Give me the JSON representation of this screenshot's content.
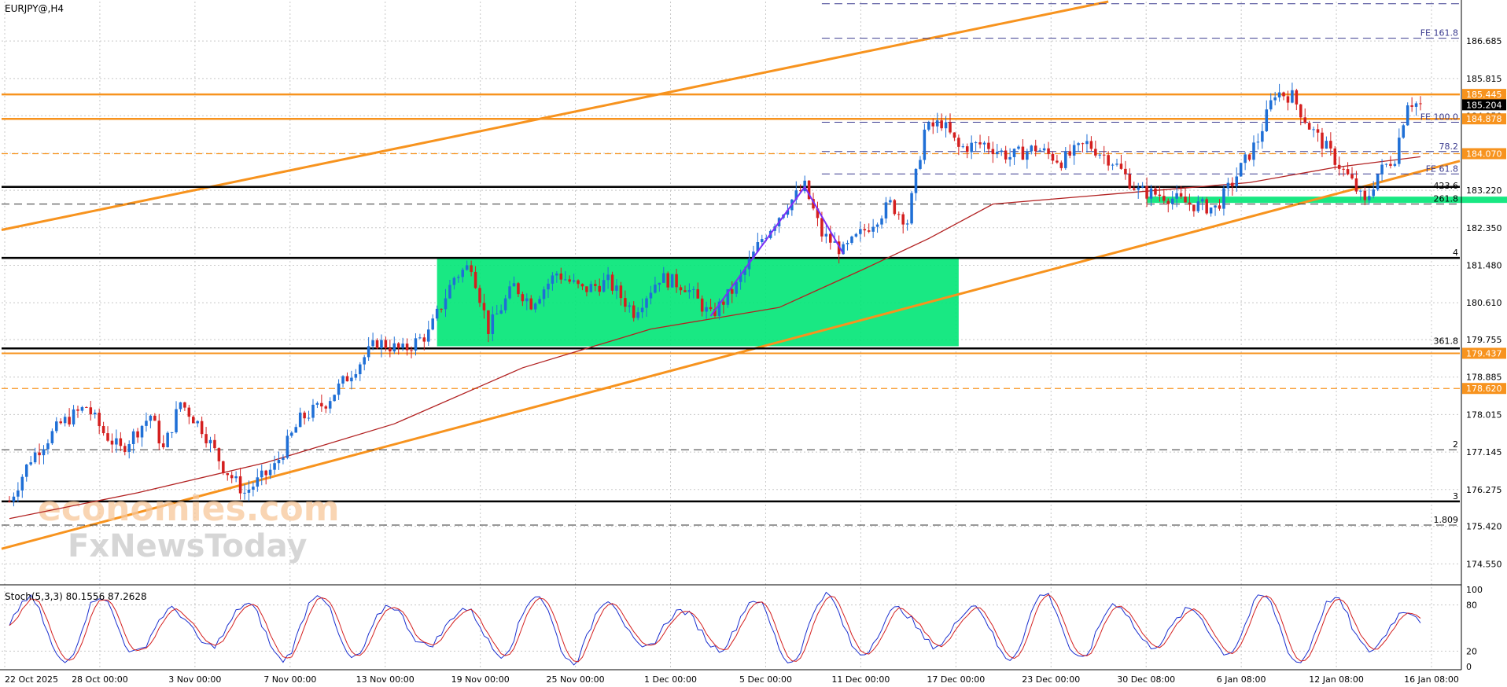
{
  "header": {
    "symbol_label": "EURJPY@,H4"
  },
  "stoch": {
    "label": "Stoch(5,3,3) 80.1556 87.2628"
  },
  "watermark": {
    "line1": "economies.com",
    "line2": "FxNewsToday"
  },
  "colors": {
    "bull": "#1f6fd6",
    "bear": "#d41f1f",
    "ma": "#b22222",
    "orange": "#f7931e",
    "fib": "#3b3b8f",
    "zone": "#00e676",
    "grid": "#c8c8c8"
  },
  "chart_data": {
    "type": "candlestick",
    "ylim": [
      174.1,
      187.6
    ],
    "y_ticks": [
      "186.685",
      "185.815",
      "184.950",
      "184.080",
      "183.220",
      "182.350",
      "181.480",
      "180.610",
      "179.755",
      "178.885",
      "178.015",
      "177.145",
      "176.275",
      "175.420",
      "174.550"
    ],
    "x_ticks": [
      "22 Oct 2025",
      "28 Oct 00:00",
      "3 Nov 00:00",
      "7 Nov 00:00",
      "13 Nov 00:00",
      "19 Nov 00:00",
      "25 Nov 00:00",
      "1 Dec 00:00",
      "5 Dec 00:00",
      "11 Dec 00:00",
      "17 Dec 00:00",
      "23 Dec 00:00",
      "30 Dec 08:00",
      "6 Jan 08:00",
      "12 Jan 08:00",
      "16 Jan 08:00"
    ],
    "price_levels": [
      {
        "label": "185.445",
        "value": 185.445,
        "color": "#f7931e"
      },
      {
        "label": "185.204",
        "value": 185.204,
        "color": "#000000"
      },
      {
        "label": "184.878",
        "value": 184.878,
        "color": "#f7931e"
      },
      {
        "label": "184.070",
        "value": 184.07,
        "color": "#f7931e"
      },
      {
        "label": "179.437",
        "value": 179.437,
        "color": "#f7931e"
      },
      {
        "label": "178.620",
        "value": 178.62,
        "color": "#f7931e"
      }
    ],
    "fib_labels": [
      {
        "label": "FE 161.8",
        "value": 186.75
      },
      {
        "label": "FE 100.0",
        "value": 184.8
      },
      {
        "label": "78.2",
        "value": 184.12
      },
      {
        "label": "FE 61.8",
        "value": 183.6
      },
      {
        "label": "423.6",
        "value": 183.2
      },
      {
        "label": "261.8",
        "value": 182.9
      },
      {
        "label": "4",
        "value": 181.65
      },
      {
        "label": "361.8",
        "value": 179.6
      },
      {
        "label": "2",
        "value": 177.2
      },
      {
        "label": "3",
        "value": 176.0
      },
      {
        "label": "1.809",
        "value": 175.45
      }
    ],
    "candles_anchor": [
      [
        0,
        176.0
      ],
      [
        5,
        177.0
      ],
      [
        12,
        177.8
      ],
      [
        18,
        178.2
      ],
      [
        22,
        177.6
      ],
      [
        26,
        177.2
      ],
      [
        33,
        178.0
      ],
      [
        36,
        177.2
      ],
      [
        40,
        178.3
      ],
      [
        45,
        177.7
      ],
      [
        50,
        176.8
      ],
      [
        55,
        176.2
      ],
      [
        62,
        176.8
      ],
      [
        68,
        177.9
      ],
      [
        74,
        178.3
      ],
      [
        80,
        179.0
      ],
      [
        86,
        179.7
      ],
      [
        92,
        179.5
      ],
      [
        98,
        179.9
      ],
      [
        104,
        181.2
      ],
      [
        108,
        181.5
      ],
      [
        112,
        180.0
      ],
      [
        118,
        181.0
      ],
      [
        122,
        180.6
      ],
      [
        128,
        181.3
      ],
      [
        134,
        180.9
      ],
      [
        140,
        181.1
      ],
      [
        146,
        180.4
      ],
      [
        152,
        181.2
      ],
      [
        158,
        181.0
      ],
      [
        164,
        180.3
      ],
      [
        170,
        181.0
      ],
      [
        176,
        182.1
      ],
      [
        182,
        182.9
      ],
      [
        186,
        183.3
      ],
      [
        190,
        182.2
      ],
      [
        195,
        181.8
      ],
      [
        201,
        182.4
      ],
      [
        206,
        182.9
      ],
      [
        210,
        182.5
      ],
      [
        214,
        184.6
      ],
      [
        218,
        184.8
      ],
      [
        222,
        184.2
      ],
      [
        228,
        184.3
      ],
      [
        234,
        184.0
      ],
      [
        240,
        184.2
      ],
      [
        246,
        183.9
      ],
      [
        252,
        184.3
      ],
      [
        258,
        183.9
      ],
      [
        264,
        183.2
      ],
      [
        270,
        183.1
      ],
      [
        276,
        182.9
      ],
      [
        282,
        182.8
      ],
      [
        286,
        183.4
      ],
      [
        292,
        184.4
      ],
      [
        296,
        185.5
      ],
      [
        300,
        185.4
      ],
      [
        304,
        184.7
      ],
      [
        308,
        184.2
      ],
      [
        314,
        183.4
      ],
      [
        317,
        182.9
      ],
      [
        320,
        183.6
      ],
      [
        324,
        184.0
      ],
      [
        327,
        185.3
      ],
      [
        330,
        185.2
      ]
    ],
    "ma_path": [
      [
        0,
        175.6
      ],
      [
        30,
        176.2
      ],
      [
        60,
        176.9
      ],
      [
        90,
        177.8
      ],
      [
        120,
        179.1
      ],
      [
        150,
        180.0
      ],
      [
        180,
        180.5
      ],
      [
        200,
        181.4
      ],
      [
        215,
        182.1
      ],
      [
        230,
        182.9
      ],
      [
        260,
        183.15
      ],
      [
        290,
        183.4
      ],
      [
        310,
        183.75
      ],
      [
        330,
        184.0
      ]
    ],
    "stoch_ylim": [
      0,
      100
    ],
    "stoch_ticks": [
      "100",
      "80",
      "20",
      "0"
    ],
    "n_candles": 331
  }
}
